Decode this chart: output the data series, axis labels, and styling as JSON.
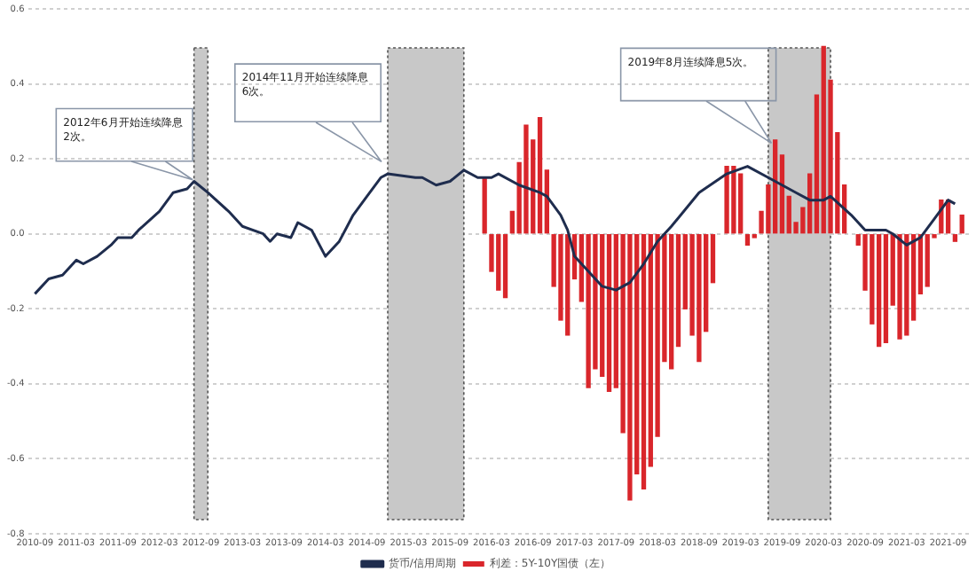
{
  "chart_data": {
    "type": "bar",
    "xlim": [
      "2010-08",
      "2021-12"
    ],
    "xticks": [
      "2010-09",
      "2011-03",
      "2011-09",
      "2012-03",
      "2012-09",
      "2013-03",
      "2013-09",
      "2014-03",
      "2014-09",
      "2015-03",
      "2015-09",
      "2016-03",
      "2016-09",
      "2017-03",
      "2017-09",
      "2018-03",
      "2018-09",
      "2019-03",
      "2019-09",
      "2020-03",
      "2020-09",
      "2021-03",
      "2021-09"
    ],
    "ylim": [
      -0.8,
      0.6
    ],
    "yticks": [
      {
        "value": -0.8,
        "label": "-0.8"
      },
      {
        "value": -0.6,
        "label": "-0.6"
      },
      {
        "value": -0.4,
        "label": "-0.4"
      },
      {
        "value": -0.2,
        "label": "-0.2"
      },
      {
        "value": 0,
        "label": "0.0"
      },
      {
        "value": 0.2,
        "label": "0.2"
      },
      {
        "value": 0.4,
        "label": "0.4"
      },
      {
        "value": 0.6,
        "label": "0.6"
      }
    ],
    "grid": "y",
    "legend": "bottom",
    "series": [
      {
        "name": "利差：5Y-10Y国债（左）",
        "type": "bar",
        "color": "#d9262b",
        "x": [
          "2016-02",
          "2016-03",
          "2016-04",
          "2016-05",
          "2016-06",
          "2016-07",
          "2016-08",
          "2016-09",
          "2016-10",
          "2016-11",
          "2016-12",
          "2017-01",
          "2017-02",
          "2017-03",
          "2017-04",
          "2017-05",
          "2017-06",
          "2017-07",
          "2017-08",
          "2017-09",
          "2017-10",
          "2017-11",
          "2017-12",
          "2018-01",
          "2018-02",
          "2018-03",
          "2018-04",
          "2018-05",
          "2018-06",
          "2018-07",
          "2018-08",
          "2018-09",
          "2018-10",
          "2018-11",
          "2018-12",
          "2019-01",
          "2019-02",
          "2019-03",
          "2019-04",
          "2019-05",
          "2019-06",
          "2019-07",
          "2019-08",
          "2019-09",
          "2019-10",
          "2019-11",
          "2019-12",
          "2020-01",
          "2020-02",
          "2020-03",
          "2020-04",
          "2020-05",
          "2020-06",
          "2020-07",
          "2020-08",
          "2020-09",
          "2020-10",
          "2020-11",
          "2020-12",
          "2021-01",
          "2021-02",
          "2021-03",
          "2021-04",
          "2021-05",
          "2021-06",
          "2021-07",
          "2021-08",
          "2021-09",
          "2021-10",
          "2021-11"
        ],
        "values": [
          0.15,
          -0.1,
          -0.15,
          -0.17,
          0.06,
          0.19,
          0.29,
          0.25,
          0.31,
          0.17,
          -0.14,
          -0.23,
          -0.27,
          -0.12,
          -0.18,
          -0.41,
          -0.36,
          -0.38,
          -0.42,
          -0.41,
          -0.53,
          -0.71,
          -0.64,
          -0.68,
          -0.62,
          -0.54,
          -0.34,
          -0.36,
          -0.3,
          -0.2,
          -0.27,
          -0.34,
          -0.26,
          -0.13,
          null,
          0.18,
          0.18,
          0.16,
          -0.03,
          -0.01,
          0.06,
          0.13,
          0.25,
          0.21,
          0.1,
          0.03,
          0.07,
          0.16,
          0.37,
          0.5,
          0.41,
          0.27,
          0.13,
          null,
          -0.03,
          -0.15,
          -0.24,
          -0.3,
          -0.29,
          -0.19,
          -0.28,
          -0.27,
          -0.23,
          -0.16,
          -0.14,
          -0.01,
          0.09,
          0.09,
          -0.02,
          0.05
        ]
      },
      {
        "name": "货币/信用周期",
        "type": "line",
        "color": "#1f2d4e",
        "x": [
          "2010-09",
          "2010-11",
          "2011-01",
          "2011-03",
          "2011-04",
          "2011-06",
          "2011-08",
          "2011-09",
          "2011-11",
          "2011-12",
          "2012-03",
          "2012-05",
          "2012-07",
          "2012-08",
          "2012-10",
          "2013-01",
          "2013-03",
          "2013-06",
          "2013-07",
          "2013-08",
          "2013-10",
          "2013-11",
          "2014-01",
          "2014-03",
          "2014-05",
          "2014-07",
          "2014-09",
          "2014-11",
          "2014-12",
          "2015-04",
          "2015-05",
          "2015-07",
          "2015-09",
          "2015-11",
          "2016-01",
          "2016-03",
          "2016-04",
          "2016-07",
          "2016-10",
          "2016-11",
          "2017-01",
          "2017-02",
          "2017-03",
          "2017-04",
          "2017-06",
          "2017-07",
          "2017-09",
          "2017-11",
          "2018-01",
          "2018-03",
          "2018-05",
          "2018-09",
          "2019-01",
          "2019-04",
          "2019-07",
          "2019-09",
          "2019-11",
          "2020-01",
          "2020-03",
          "2020-04",
          "2020-07",
          "2020-09",
          "2020-12",
          "2021-01",
          "2021-03",
          "2021-05",
          "2021-07",
          "2021-09",
          "2021-10"
        ],
        "values": [
          -0.16,
          -0.12,
          -0.11,
          -0.07,
          -0.08,
          -0.06,
          -0.03,
          -0.01,
          -0.01,
          0.01,
          0.06,
          0.11,
          0.12,
          0.14,
          0.11,
          0.06,
          0.02,
          0.0,
          -0.02,
          0.0,
          -0.01,
          0.03,
          0.01,
          -0.06,
          -0.02,
          0.05,
          0.1,
          0.15,
          0.16,
          0.15,
          0.15,
          0.13,
          0.14,
          0.17,
          0.15,
          0.15,
          0.16,
          0.13,
          0.11,
          0.1,
          0.05,
          0.01,
          -0.06,
          -0.08,
          -0.12,
          -0.14,
          -0.15,
          -0.13,
          -0.08,
          -0.02,
          0.02,
          0.11,
          0.16,
          0.18,
          0.15,
          0.13,
          0.11,
          0.09,
          0.09,
          0.1,
          0.05,
          0.01,
          0.01,
          0.0,
          -0.03,
          -0.01,
          0.04,
          0.09,
          0.08
        ]
      }
    ],
    "bands": [
      {
        "axis": "x",
        "from": "2012-08",
        "to": "2012-10",
        "color": "#c8c8c8"
      },
      {
        "axis": "x",
        "from": "2014-12",
        "to": "2015-11",
        "color": "#c8c8c8"
      },
      {
        "axis": "x",
        "from": "2019-07",
        "to": "2020-04",
        "color": "#c8c8c8"
      }
    ],
    "annotations": [
      "2012年6月开始连续降息2次。",
      "2014年11月开始连续降息6次。",
      "2019年8月连续降息5次。"
    ]
  }
}
